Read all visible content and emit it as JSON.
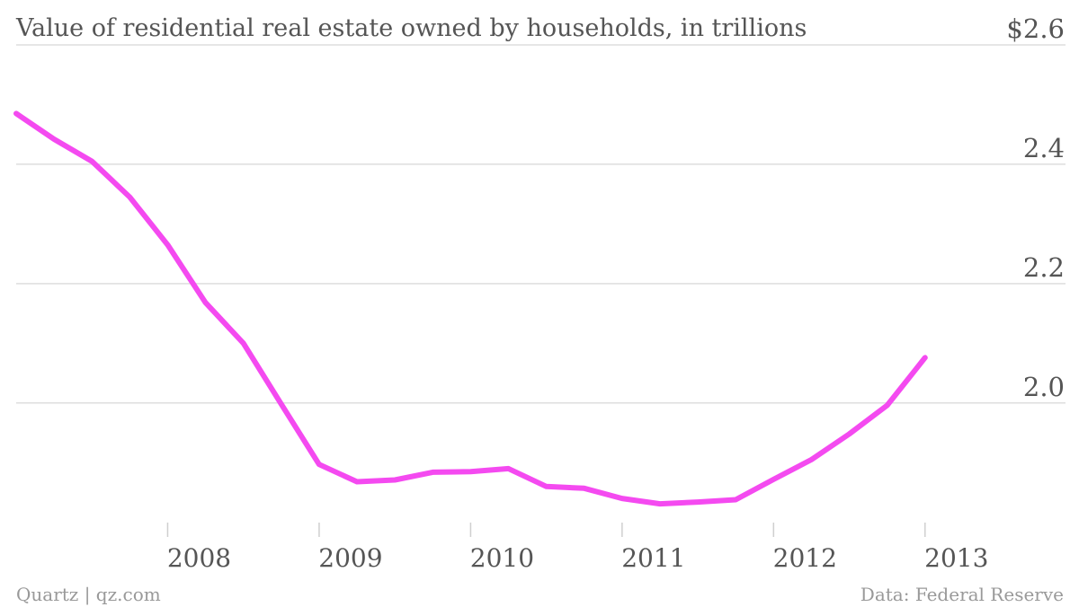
{
  "chart_data": {
    "type": "line",
    "title": "Value of residential real estate owned by households, in trillions",
    "xlabel": "",
    "ylabel": "",
    "y_ticks": [
      {
        "value": 2.0,
        "label": "2.0"
      },
      {
        "value": 2.2,
        "label": "2.2"
      },
      {
        "value": 2.4,
        "label": "2.4"
      },
      {
        "value": 2.6,
        "label": "$2.6"
      }
    ],
    "x_ticks": [
      {
        "value": 2008.0,
        "label": "2008"
      },
      {
        "value": 2009.0,
        "label": "2009"
      },
      {
        "value": 2010.0,
        "label": "2010"
      },
      {
        "value": 2011.0,
        "label": "2011"
      },
      {
        "value": 2012.0,
        "label": "2012"
      },
      {
        "value": 2013.0,
        "label": "2013"
      }
    ],
    "xlim": [
      2007.0,
      2013.5
    ],
    "ylim": [
      1.78,
      2.6
    ],
    "grid": true,
    "line_color": "#f44af0",
    "series": [
      {
        "x": [
          2007.0,
          2007.25,
          2007.5,
          2007.75,
          2008.0,
          2008.25,
          2008.5,
          2008.75,
          2009.0,
          2009.25,
          2009.5,
          2009.75,
          2010.0,
          2010.25,
          2010.5,
          2010.75,
          2011.0,
          2011.25,
          2011.5,
          2011.75,
          2012.0,
          2012.25,
          2012.5,
          2012.75,
          2013.0,
          2013.25
        ],
        "y": [
          2.485,
          2.442,
          2.405,
          2.345,
          2.265,
          2.168,
          2.1,
          1.998,
          1.897,
          1.868,
          1.871,
          1.884,
          1.885,
          1.89,
          1.86,
          1.857,
          1.84,
          1.831,
          1.834,
          1.838,
          1.872,
          1.905,
          1.948,
          1.996,
          2.076,
          null
        ]
      }
    ],
    "source": "Data: Federal Reserve",
    "credit": "Quartz | qz.com"
  }
}
